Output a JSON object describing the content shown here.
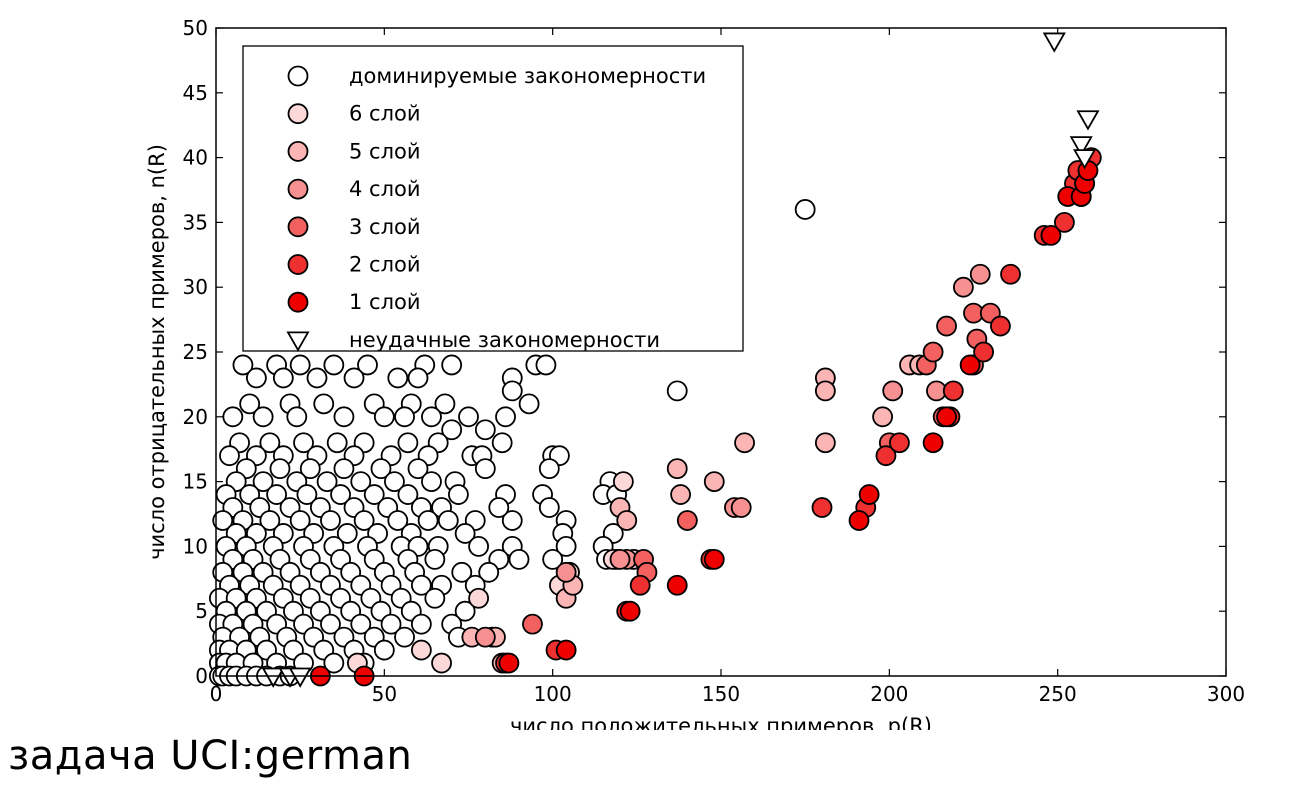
{
  "caption": "задача UCI:german",
  "chart_data": {
    "type": "scatter",
    "xlabel": "число положительных примеров, p(R)",
    "ylabel": "число отрицательных примеров, n(R)",
    "xlim": [
      0,
      300
    ],
    "ylim": [
      0,
      50
    ],
    "xticks": [
      0,
      50,
      100,
      150,
      200,
      250,
      300
    ],
    "yticks": [
      0,
      5,
      10,
      15,
      20,
      25,
      30,
      35,
      40,
      45,
      50
    ],
    "grid": false,
    "legend_position": "top-left",
    "series": [
      {
        "name": "доминируемые закономерности",
        "marker": "circle",
        "fill": "#ffffff",
        "points": [
          [
            175,
            36
          ],
          [
            137,
            22
          ],
          [
            8,
            24
          ],
          [
            18,
            24
          ],
          [
            25,
            24
          ],
          [
            35,
            24
          ],
          [
            45,
            24
          ],
          [
            62,
            24
          ],
          [
            70,
            24
          ],
          [
            95,
            24
          ],
          [
            98,
            24
          ],
          [
            12,
            23
          ],
          [
            20,
            23
          ],
          [
            30,
            23
          ],
          [
            41,
            23
          ],
          [
            54,
            23
          ],
          [
            60,
            23
          ],
          [
            88,
            23
          ],
          [
            10,
            21
          ],
          [
            22,
            21
          ],
          [
            32,
            21
          ],
          [
            47,
            21
          ],
          [
            58,
            21
          ],
          [
            68,
            21
          ],
          [
            88,
            22
          ],
          [
            93,
            21
          ],
          [
            75,
            20
          ],
          [
            5,
            20
          ],
          [
            14,
            20
          ],
          [
            24,
            20
          ],
          [
            38,
            20
          ],
          [
            50,
            20
          ],
          [
            56,
            20
          ],
          [
            64,
            20
          ],
          [
            70,
            19
          ],
          [
            80,
            19
          ],
          [
            86,
            20
          ],
          [
            7,
            18
          ],
          [
            16,
            18
          ],
          [
            26,
            18
          ],
          [
            36,
            18
          ],
          [
            44,
            18
          ],
          [
            57,
            18
          ],
          [
            66,
            18
          ],
          [
            85,
            18
          ],
          [
            4,
            17
          ],
          [
            12,
            17
          ],
          [
            20,
            17
          ],
          [
            30,
            17
          ],
          [
            41,
            17
          ],
          [
            52,
            17
          ],
          [
            63,
            17
          ],
          [
            76,
            17
          ],
          [
            79,
            17
          ],
          [
            100,
            17
          ],
          [
            102,
            17
          ],
          [
            9,
            16
          ],
          [
            19,
            16
          ],
          [
            28,
            16
          ],
          [
            38,
            16
          ],
          [
            49,
            16
          ],
          [
            60,
            16
          ],
          [
            71,
            15
          ],
          [
            80,
            16
          ],
          [
            99,
            16
          ],
          [
            117,
            15
          ],
          [
            6,
            15
          ],
          [
            14,
            15
          ],
          [
            24,
            15
          ],
          [
            33,
            15
          ],
          [
            43,
            15
          ],
          [
            53,
            15
          ],
          [
            64,
            15
          ],
          [
            72,
            14
          ],
          [
            86,
            14
          ],
          [
            97,
            14
          ],
          [
            115,
            14
          ],
          [
            3,
            14
          ],
          [
            10,
            14
          ],
          [
            18,
            14
          ],
          [
            27,
            14
          ],
          [
            37,
            14
          ],
          [
            47,
            14
          ],
          [
            57,
            14
          ],
          [
            67,
            13
          ],
          [
            77,
            12
          ],
          [
            88,
            12
          ],
          [
            99,
            13
          ],
          [
            119,
            14
          ],
          [
            5,
            13
          ],
          [
            13,
            13
          ],
          [
            22,
            13
          ],
          [
            31,
            13
          ],
          [
            41,
            13
          ],
          [
            51,
            13
          ],
          [
            61,
            13
          ],
          [
            69,
            12
          ],
          [
            84,
            13
          ],
          [
            104,
            12
          ],
          [
            2,
            12
          ],
          [
            8,
            12
          ],
          [
            16,
            12
          ],
          [
            25,
            12
          ],
          [
            34,
            12
          ],
          [
            44,
            12
          ],
          [
            54,
            12
          ],
          [
            63,
            12
          ],
          [
            74,
            11
          ],
          [
            103,
            11
          ],
          [
            118,
            11
          ],
          [
            6,
            11
          ],
          [
            12,
            11
          ],
          [
            20,
            11
          ],
          [
            29,
            11
          ],
          [
            39,
            11
          ],
          [
            48,
            11
          ],
          [
            58,
            11
          ],
          [
            66,
            10
          ],
          [
            78,
            10
          ],
          [
            88,
            10
          ],
          [
            104,
            10
          ],
          [
            115,
            10
          ],
          [
            3,
            10
          ],
          [
            9,
            10
          ],
          [
            17,
            10
          ],
          [
            26,
            10
          ],
          [
            35,
            10
          ],
          [
            45,
            10
          ],
          [
            55,
            10
          ],
          [
            60,
            10
          ],
          [
            84,
            9
          ],
          [
            100,
            9
          ],
          [
            116,
            9
          ],
          [
            5,
            9
          ],
          [
            11,
            9
          ],
          [
            19,
            9
          ],
          [
            28,
            9
          ],
          [
            37,
            9
          ],
          [
            47,
            9
          ],
          [
            57,
            9
          ],
          [
            65,
            9
          ],
          [
            73,
            8
          ],
          [
            81,
            8
          ],
          [
            90,
            9
          ],
          [
            119,
            9
          ],
          [
            2,
            8
          ],
          [
            8,
            8
          ],
          [
            14,
            8
          ],
          [
            22,
            8
          ],
          [
            31,
            8
          ],
          [
            40,
            8
          ],
          [
            50,
            8
          ],
          [
            59,
            8
          ],
          [
            67,
            7
          ],
          [
            77,
            7
          ],
          [
            4,
            7
          ],
          [
            10,
            7
          ],
          [
            17,
            7
          ],
          [
            25,
            7
          ],
          [
            34,
            7
          ],
          [
            43,
            7
          ],
          [
            52,
            7
          ],
          [
            61,
            7
          ],
          [
            1,
            6
          ],
          [
            6,
            6
          ],
          [
            12,
            6
          ],
          [
            20,
            6
          ],
          [
            28,
            6
          ],
          [
            37,
            6
          ],
          [
            46,
            6
          ],
          [
            55,
            6
          ],
          [
            65,
            6
          ],
          [
            74,
            5
          ],
          [
            3,
            5
          ],
          [
            9,
            5
          ],
          [
            15,
            5
          ],
          [
            23,
            5
          ],
          [
            31,
            5
          ],
          [
            40,
            5
          ],
          [
            49,
            5
          ],
          [
            58,
            5
          ],
          [
            1,
            4
          ],
          [
            5,
            4
          ],
          [
            11,
            4
          ],
          [
            18,
            4
          ],
          [
            26,
            4
          ],
          [
            34,
            4
          ],
          [
            43,
            4
          ],
          [
            52,
            4
          ],
          [
            61,
            4
          ],
          [
            70,
            4
          ],
          [
            2,
            3
          ],
          [
            7,
            3
          ],
          [
            13,
            3
          ],
          [
            21,
            3
          ],
          [
            29,
            3
          ],
          [
            38,
            3
          ],
          [
            47,
            3
          ],
          [
            56,
            3
          ],
          [
            72,
            3
          ],
          [
            82,
            3
          ],
          [
            1,
            2
          ],
          [
            4,
            2
          ],
          [
            9,
            2
          ],
          [
            15,
            2
          ],
          [
            23,
            2
          ],
          [
            32,
            2
          ],
          [
            41,
            2
          ],
          [
            50,
            2
          ],
          [
            1,
            1
          ],
          [
            3,
            1
          ],
          [
            6,
            1
          ],
          [
            11,
            1
          ],
          [
            18,
            1
          ],
          [
            26,
            1
          ],
          [
            35,
            1
          ],
          [
            44,
            1
          ],
          [
            1,
            0
          ],
          [
            2,
            0
          ],
          [
            4,
            0
          ],
          [
            6,
            0
          ],
          [
            9,
            0
          ],
          [
            12,
            0
          ],
          [
            15,
            0
          ],
          [
            19,
            0
          ],
          [
            22,
            0
          ]
        ]
      },
      {
        "name": "6 слой",
        "marker": "circle",
        "fill": "#fdd8d8",
        "points": [
          [
            42,
            1
          ],
          [
            61,
            2
          ],
          [
            67,
            1
          ],
          [
            78,
            6
          ],
          [
            102,
            7
          ],
          [
            118,
            9
          ],
          [
            121,
            15
          ],
          [
            124,
            9
          ],
          [
            105,
            8
          ]
        ]
      },
      {
        "name": "5 слой",
        "marker": "circle",
        "fill": "#fbb5b5",
        "points": [
          [
            76,
            3
          ],
          [
            83,
            3
          ],
          [
            85,
            1
          ],
          [
            104,
            6
          ],
          [
            106,
            7
          ],
          [
            120,
            13
          ],
          [
            122,
            12
          ],
          [
            137,
            16
          ],
          [
            138,
            14
          ],
          [
            148,
            15
          ],
          [
            157,
            18
          ],
          [
            181,
            23
          ],
          [
            181,
            22
          ],
          [
            181,
            18
          ],
          [
            198,
            20
          ],
          [
            206,
            24
          ],
          [
            209,
            24
          ]
        ]
      },
      {
        "name": "4 слой",
        "marker": "circle",
        "fill": "#f79090",
        "points": [
          [
            80,
            3
          ],
          [
            104,
            8
          ],
          [
            122,
            9
          ],
          [
            120,
            9
          ],
          [
            154,
            13
          ],
          [
            156,
            13
          ],
          [
            201,
            22
          ],
          [
            214,
            22
          ],
          [
            222,
            30
          ],
          [
            227,
            31
          ]
        ]
      },
      {
        "name": "3 слой",
        "marker": "circle",
        "fill": "#f36060",
        "points": [
          [
            94,
            4
          ],
          [
            127,
            9
          ],
          [
            128,
            8
          ],
          [
            140,
            12
          ],
          [
            200,
            18
          ],
          [
            211,
            24
          ],
          [
            217,
            27
          ],
          [
            225,
            28
          ],
          [
            226,
            26
          ],
          [
            230,
            28
          ],
          [
            216,
            20
          ],
          [
            213,
            25
          ],
          [
            225,
            24
          ]
        ]
      },
      {
        "name": "2 слой",
        "marker": "circle",
        "fill": "#ee3030",
        "points": [
          [
            86,
            1
          ],
          [
            101,
            2
          ],
          [
            122,
            5
          ],
          [
            126,
            7
          ],
          [
            147,
            9
          ],
          [
            180,
            13
          ],
          [
            193,
            13
          ],
          [
            199,
            17
          ],
          [
            203,
            18
          ],
          [
            218,
            20
          ],
          [
            219,
            22
          ],
          [
            228,
            25
          ],
          [
            233,
            27
          ],
          [
            236,
            31
          ],
          [
            246,
            34
          ],
          [
            252,
            35
          ],
          [
            255,
            38
          ],
          [
            257,
            37
          ],
          [
            256,
            39
          ],
          [
            258,
            38
          ],
          [
            260,
            40
          ]
        ]
      },
      {
        "name": "1 слой",
        "marker": "circle",
        "fill": "#ee0000",
        "points": [
          [
            31,
            0
          ],
          [
            44,
            0
          ],
          [
            87,
            1
          ],
          [
            104,
            2
          ],
          [
            123,
            5
          ],
          [
            137,
            7
          ],
          [
            148,
            9
          ],
          [
            191,
            12
          ],
          [
            194,
            14
          ],
          [
            213,
            18
          ],
          [
            217,
            20
          ],
          [
            224,
            24
          ],
          [
            248,
            34
          ],
          [
            253,
            37
          ],
          [
            257,
            37
          ],
          [
            258,
            38
          ],
          [
            259,
            39
          ]
        ]
      },
      {
        "name": "неудачные закономерности",
        "marker": "triangle-down",
        "fill": "#ffffff",
        "points": [
          [
            17,
            0
          ],
          [
            22,
            0
          ],
          [
            25,
            0
          ],
          [
            249,
            49
          ],
          [
            259,
            43
          ],
          [
            257,
            41
          ],
          [
            258,
            40
          ]
        ]
      }
    ]
  }
}
